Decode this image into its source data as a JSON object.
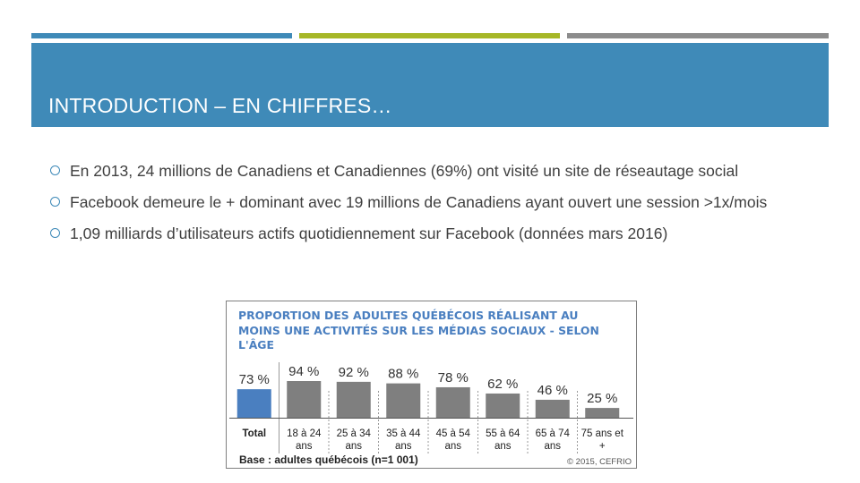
{
  "slide": {
    "accent_colors": {
      "blue": "#3f8ab8",
      "green": "#a6b727",
      "gray": "#8c8c8c"
    },
    "title": "INTRODUCTION – EN CHIFFRES…",
    "bullets": [
      "En 2013, 24 millions de Canadiens et Canadiennes (69%) ont visité un site de réseautage social",
      "Facebook demeure le + dominant avec 19 millions de Canadiens ayant ouvert une session >1x/mois",
      "1,09 milliards d’utilisateurs actifs quotidiennement sur Facebook (données mars 2016)"
    ],
    "bullet_icon": "hollow-circle-bullet"
  },
  "chart_data": {
    "type": "bar",
    "title": "PROPORTION DES ADULTES QUÉBÉCOIS RÉALISANT AU MOINS UNE ACTIVITÉS SUR LES MÉDIAS SOCIAUX - SELON L'ÂGE",
    "categories": [
      "Total",
      "18 à 24 ans",
      "25 à 34 ans",
      "35 à 44 ans",
      "45 à 54 ans",
      "55 à 64 ans",
      "65 à 74 ans",
      "75 ans et +"
    ],
    "values": [
      73,
      94,
      92,
      88,
      78,
      62,
      46,
      25
    ],
    "value_labels": [
      "73 %",
      "94 %",
      "92 %",
      "88 %",
      "78 %",
      "62 %",
      "46 %",
      "25 %"
    ],
    "colors": {
      "total": "#4a7fc0",
      "others": "#7f7f7f",
      "title": "#4a7fc0"
    },
    "base_note": "Base : adultes québécois (n=1 001)",
    "source_note": "© 2015, CEFRIO"
  }
}
